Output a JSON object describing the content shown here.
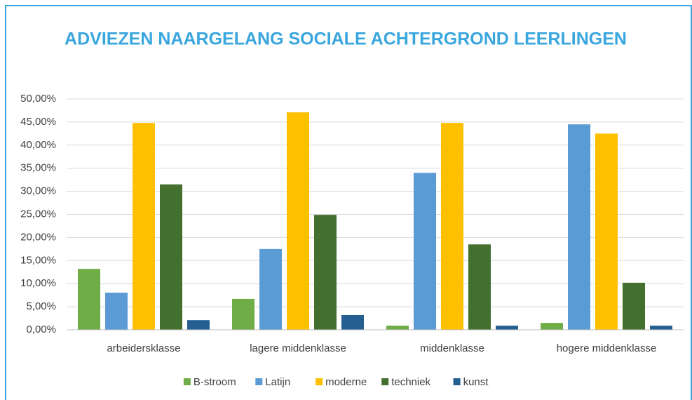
{
  "chart_data": {
    "type": "bar",
    "title": "ADVIEZEN NAARGELANG SOCIALE ACHTERGROND LEERLINGEN",
    "categories": [
      "arbeidersklasse",
      "lagere middenklasse",
      "middenklasse",
      "hogere middenklasse"
    ],
    "series": [
      {
        "name": "B-stroom",
        "color": "#70ad47",
        "values": [
          13.2,
          6.7,
          0.9,
          1.5
        ]
      },
      {
        "name": "Latijn",
        "color": "#5b9bd5",
        "values": [
          8.05,
          17.5,
          34.0,
          44.5
        ]
      },
      {
        "name": "moderne",
        "color": "#ffc000",
        "values": [
          44.8,
          47.1,
          44.8,
          42.5
        ]
      },
      {
        "name": "techniek",
        "color": "#43702f",
        "values": [
          31.5,
          24.9,
          18.5,
          10.2
        ]
      },
      {
        "name": "kunst",
        "color": "#255e91",
        "values": [
          2.1,
          3.2,
          0.9,
          0.9
        ]
      }
    ],
    "ylim": [
      0,
      50
    ],
    "yticks": [
      {
        "value": 0,
        "label": "0,00%"
      },
      {
        "value": 5,
        "label": "5,00%"
      },
      {
        "value": 10,
        "label": "10,00%"
      },
      {
        "value": 15,
        "label": "15,00%"
      },
      {
        "value": 20,
        "label": "20,00%"
      },
      {
        "value": 25,
        "label": "25,00%"
      },
      {
        "value": 30,
        "label": "30,00%"
      },
      {
        "value": 35,
        "label": "35,00%"
      },
      {
        "value": 40,
        "label": "40,00%"
      },
      {
        "value": 45,
        "label": "45,00%"
      },
      {
        "value": 50,
        "label": "50,00%"
      }
    ],
    "grid": true,
    "legend": "bottom"
  }
}
